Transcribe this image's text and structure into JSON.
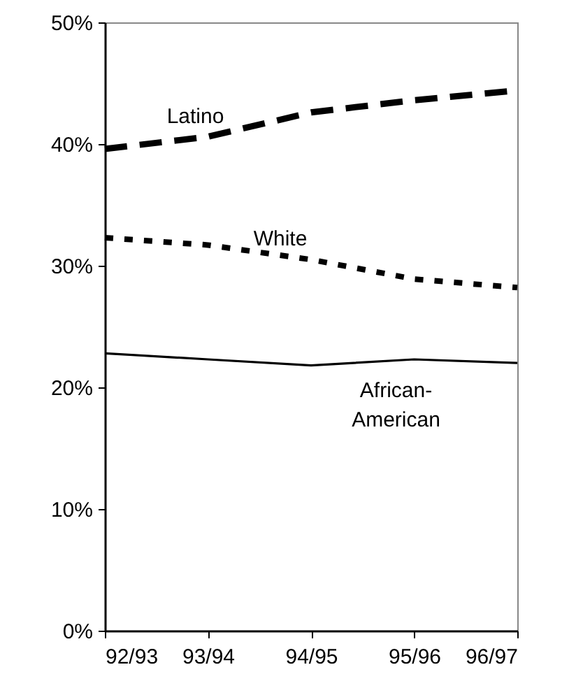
{
  "chart_data": {
    "type": "line",
    "categories": [
      "92/93",
      "93/94",
      "94/95",
      "95/96",
      "96/97"
    ],
    "series": [
      {
        "name": "Latino",
        "color": "#000000",
        "line_style": "dashed",
        "values": [
          39.6,
          40.6,
          42.6,
          43.6,
          44.4
        ]
      },
      {
        "name": "White",
        "color": "#000000",
        "line_style": "dotted",
        "values": [
          32.3,
          31.7,
          30.5,
          28.9,
          28.2
        ]
      },
      {
        "name": "African-\nAmerican",
        "color": "#000000",
        "line_style": "solid",
        "values": [
          22.8,
          22.3,
          21.8,
          22.3,
          22.0
        ]
      }
    ],
    "ylim": [
      0,
      50
    ],
    "yticks": [
      {
        "value": 0,
        "label": "0%"
      },
      {
        "value": 10,
        "label": "10%"
      },
      {
        "value": 20,
        "label": "20%"
      },
      {
        "value": 30,
        "label": "30%"
      },
      {
        "value": 40,
        "label": "40%"
      },
      {
        "value": 50,
        "label": "50%"
      }
    ],
    "grid": false,
    "legend": false,
    "marker": "none"
  }
}
